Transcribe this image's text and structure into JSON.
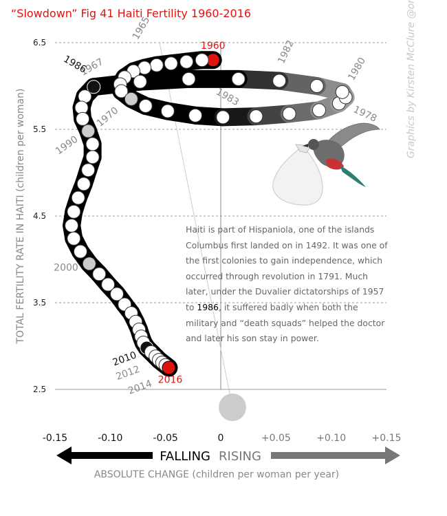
{
  "title": "“Slowdown” Fig 41 Haiti Fertility 1960-2016",
  "credit": "Graphics by Kirsten McClure @orpheuscat",
  "annotation": {
    "before": "Haiti is part of Hispaniola, one of the islands Columbus first landed on in 1492. It was one of the first colonies to gain independence, which occurred through revolution in 1791. Much later, under the Duvalier dictatorships of 1957 to ",
    "highlight": "1986",
    "after": ", it suffered badly when both the military and “death squads” helped the doctor and later his son stay in power."
  },
  "colors": {
    "red": "#e0140f",
    "dark": "#111111",
    "gray": "#888888",
    "grid": "#999999"
  },
  "chart_data": {
    "type": "scatter",
    "title": "“Slowdown” Fig 41 Haiti Fertility 1960-2016",
    "xlabel": "ABSOLUTE CHANGE (children per woman per year)",
    "ylabel": "TOTAL FERTILITY RATE IN HAITI (children per woman)",
    "xlim": [
      -0.15,
      0.15
    ],
    "ylim": [
      2.5,
      6.5
    ],
    "x_ticks": [
      "-0.15",
      "-0.10",
      "-0.05",
      "0",
      "+0.05",
      "+0.10",
      "+0.15"
    ],
    "y_ticks": [
      "2.5",
      "3.5",
      "4.5",
      "5.5",
      "6.5"
    ],
    "arrows": {
      "falling": "FALLING",
      "rising": "RISING"
    },
    "grid": true,
    "points": [
      {
        "year": 1960,
        "x": -0.007,
        "y": 6.3
      },
      {
        "year": 1961,
        "x": -0.017,
        "y": 6.3
      },
      {
        "year": 1962,
        "x": -0.031,
        "y": 6.28
      },
      {
        "year": 1963,
        "x": -0.045,
        "y": 6.26
      },
      {
        "year": 1964,
        "x": -0.058,
        "y": 6.24
      },
      {
        "year": 1965,
        "x": -0.069,
        "y": 6.21
      },
      {
        "year": 1966,
        "x": -0.079,
        "y": 6.17
      },
      {
        "year": 1967,
        "x": -0.087,
        "y": 6.1
      },
      {
        "year": 1968,
        "x": -0.091,
        "y": 6.02
      },
      {
        "year": 1969,
        "x": -0.09,
        "y": 5.94
      },
      {
        "year": 1970,
        "x": -0.081,
        "y": 5.85
      },
      {
        "year": 1971,
        "x": -0.068,
        "y": 5.77
      },
      {
        "year": 1972,
        "x": -0.048,
        "y": 5.71
      },
      {
        "year": 1973,
        "x": -0.023,
        "y": 5.66
      },
      {
        "year": 1974,
        "x": 0.002,
        "y": 5.64
      },
      {
        "year": 1975,
        "x": 0.032,
        "y": 5.65
      },
      {
        "year": 1976,
        "x": 0.062,
        "y": 5.68
      },
      {
        "year": 1977,
        "x": 0.089,
        "y": 5.72
      },
      {
        "year": 1978,
        "x": 0.107,
        "y": 5.8
      },
      {
        "year": 1979,
        "x": 0.113,
        "y": 5.87
      },
      {
        "year": 1980,
        "x": 0.11,
        "y": 5.93
      },
      {
        "year": 1981,
        "x": 0.087,
        "y": 6.0
      },
      {
        "year": 1982,
        "x": 0.053,
        "y": 6.06
      },
      {
        "year": 1983,
        "x": 0.016,
        "y": 6.08
      },
      {
        "year": 1984,
        "x": -0.029,
        "y": 6.08
      },
      {
        "year": 1985,
        "x": -0.073,
        "y": 6.05
      },
      {
        "year": 1986,
        "x": -0.115,
        "y": 5.99
      },
      {
        "year": 1987,
        "x": -0.123,
        "y": 5.88
      },
      {
        "year": 1988,
        "x": -0.126,
        "y": 5.75
      },
      {
        "year": 1989,
        "x": -0.125,
        "y": 5.62
      },
      {
        "year": 1990,
        "x": -0.12,
        "y": 5.48
      },
      {
        "year": 1991,
        "x": -0.116,
        "y": 5.33
      },
      {
        "year": 1992,
        "x": -0.116,
        "y": 5.18
      },
      {
        "year": 1993,
        "x": -0.12,
        "y": 5.03
      },
      {
        "year": 1994,
        "x": -0.124,
        "y": 4.87
      },
      {
        "year": 1995,
        "x": -0.129,
        "y": 4.71
      },
      {
        "year": 1996,
        "x": -0.133,
        "y": 4.55
      },
      {
        "year": 1997,
        "x": -0.135,
        "y": 4.39
      },
      {
        "year": 1998,
        "x": -0.133,
        "y": 4.24
      },
      {
        "year": 1999,
        "x": -0.127,
        "y": 4.09
      },
      {
        "year": 2000,
        "x": -0.119,
        "y": 3.95
      },
      {
        "year": 2001,
        "x": -0.11,
        "y": 3.83
      },
      {
        "year": 2002,
        "x": -0.102,
        "y": 3.71
      },
      {
        "year": 2003,
        "x": -0.094,
        "y": 3.6
      },
      {
        "year": 2004,
        "x": -0.087,
        "y": 3.48
      },
      {
        "year": 2005,
        "x": -0.081,
        "y": 3.38
      },
      {
        "year": 2006,
        "x": -0.077,
        "y": 3.28
      },
      {
        "year": 2007,
        "x": -0.074,
        "y": 3.19
      },
      {
        "year": 2008,
        "x": -0.072,
        "y": 3.11
      },
      {
        "year": 2009,
        "x": -0.07,
        "y": 3.04
      },
      {
        "year": 2010,
        "x": -0.067,
        "y": 2.98
      },
      {
        "year": 2011,
        "x": -0.063,
        "y": 2.93
      },
      {
        "year": 2012,
        "x": -0.059,
        "y": 2.88
      },
      {
        "year": 2013,
        "x": -0.056,
        "y": 2.84
      },
      {
        "year": 2014,
        "x": -0.053,
        "y": 2.81
      },
      {
        "year": 2015,
        "x": -0.05,
        "y": 2.78
      },
      {
        "year": 2016,
        "x": -0.047,
        "y": 2.75
      }
    ],
    "highlight_years": [
      {
        "year": 1960,
        "label": "1960",
        "color": "#e0140f",
        "fill": "#e0140f"
      },
      {
        "year": 1965,
        "label": "1965",
        "color": "#888888",
        "fill": "#ffffff"
      },
      {
        "year": 1967,
        "label": "1967",
        "color": "#888888",
        "fill": "#ffffff"
      },
      {
        "year": 1970,
        "label": "1970",
        "color": "#888888",
        "fill": "#cccccc"
      },
      {
        "year": 1978,
        "label": "1978",
        "color": "#888888",
        "fill": "#ffffff"
      },
      {
        "year": 1980,
        "label": "1980",
        "color": "#888888",
        "fill": "#ffffff"
      },
      {
        "year": 1982,
        "label": "1982",
        "color": "#888888",
        "fill": "#ffffff"
      },
      {
        "year": 1983,
        "label": "1983",
        "color": "#888888",
        "fill": "#ffffff"
      },
      {
        "year": 1986,
        "label": "1986",
        "color": "#111111",
        "fill": "#111111"
      },
      {
        "year": 1990,
        "label": "1990",
        "color": "#888888",
        "fill": "#cccccc"
      },
      {
        "year": 2000,
        "label": "2000",
        "color": "#888888",
        "fill": "#cccccc"
      },
      {
        "year": 2010,
        "label": "2010",
        "color": "#111111",
        "fill": "#111111"
      },
      {
        "year": 2012,
        "label": "2012",
        "color": "#888888",
        "fill": "#ffffff"
      },
      {
        "year": 2014,
        "label": "2014",
        "color": "#888888",
        "fill": "#ffffff"
      },
      {
        "year": 2016,
        "label": "2016",
        "color": "#e0140f",
        "fill": "#e0140f"
      }
    ]
  }
}
